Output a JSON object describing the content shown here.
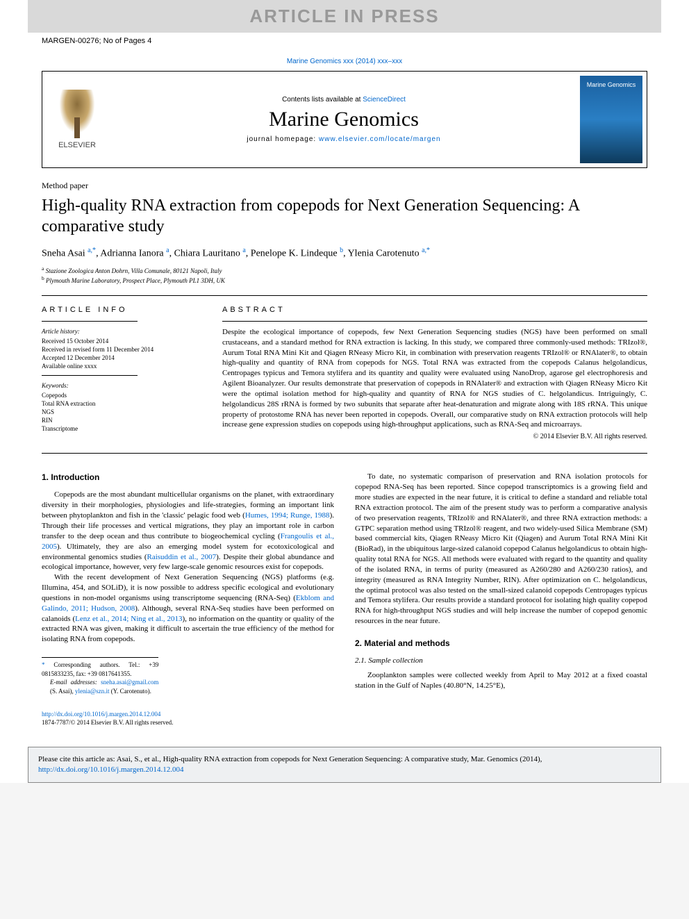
{
  "watermark": "ARTICLE IN PRESS",
  "ref_code": "MARGEN-00276; No of Pages 4",
  "journal_citation": "Marine Genomics xxx (2014) xxx–xxx",
  "header": {
    "contents_prefix": "Contents lists available at ",
    "contents_link": "ScienceDirect",
    "journal_name": "Marine Genomics",
    "homepage_prefix": "journal homepage: ",
    "homepage_url": "www.elsevier.com/locate/margen",
    "publisher": "ELSEVIER",
    "cover_label": "Marine Genomics"
  },
  "article": {
    "type": "Method paper",
    "title": "High-quality RNA extraction from copepods for Next Generation Sequencing: A comparative study",
    "authors_html": "Sneha Asai <sup>a,*</sup>, Adrianna Ianora <sup>a</sup>, Chiara Lauritano <sup>a</sup>, Penelope K. Lindeque <sup>b</sup>, Ylenia Carotenuto <sup>a,*</sup>",
    "affiliations": {
      "a": "Stazione Zoologica Anton Dohrn, Villa Comunale, 80121 Napoli, Italy",
      "b": "Plymouth Marine Laboratory, Prospect Place, Plymouth PL1 3DH, UK"
    }
  },
  "info": {
    "heading": "ARTICLE INFO",
    "history_label": "Article history:",
    "received": "Received 15 October 2014",
    "revised": "Received in revised form 11 December 2014",
    "accepted": "Accepted 12 December 2014",
    "online": "Available online xxxx",
    "keywords_label": "Keywords:",
    "keywords": [
      "Copepods",
      "Total RNA extraction",
      "NGS",
      "RIN",
      "Transcriptome"
    ]
  },
  "abstract": {
    "heading": "ABSTRACT",
    "text": "Despite the ecological importance of copepods, few Next Generation Sequencing studies (NGS) have been performed on small crustaceans, and a standard method for RNA extraction is lacking. In this study, we compared three commonly-used methods: TRIzol®, Aurum Total RNA Mini Kit and Qiagen RNeasy Micro Kit, in combination with preservation reagents TRIzol® or RNAlater®, to obtain high-quality and quantity of RNA from copepods for NGS. Total RNA was extracted from the copepods Calanus helgolandicus, Centropages typicus and Temora stylifera and its quantity and quality were evaluated using NanoDrop, agarose gel electrophoresis and Agilent Bioanalyzer. Our results demonstrate that preservation of copepods in RNAlater® and extraction with Qiagen RNeasy Micro Kit were the optimal isolation method for high-quality and quantity of RNA for NGS studies of C. helgolandicus. Intriguingly, C. helgolandicus 28S rRNA is formed by two subunits that separate after heat-denaturation and migrate along with 18S rRNA. This unique property of protostome RNA has never been reported in copepods. Overall, our comparative study on RNA extraction protocols will help increase gene expression studies on copepods using high-throughput applications, such as RNA-Seq and microarrays.",
    "copyright": "© 2014 Elsevier B.V. All rights reserved."
  },
  "body": {
    "s1_title": "1. Introduction",
    "s1_p1_a": "Copepods are the most abundant multicellular organisms on the planet, with extraordinary diversity in their morphologies, physiologies and life-strategies, forming an important link between phytoplankton and fish in the 'classic' pelagic food web (",
    "s1_p1_link1": "Humes, 1994; Runge, 1988",
    "s1_p1_b": "). Through their life processes and vertical migrations, they play an important role in carbon transfer to the deep ocean and thus contribute to biogeochemical cycling (",
    "s1_p1_link2": "Frangoulis et al., 2005",
    "s1_p1_c": "). Ultimately, they are also an emerging model system for ecotoxicological and environmental genomics studies (",
    "s1_p1_link3": "Raisuddin et al., 2007",
    "s1_p1_d": "). Despite their global abundance and ecological importance, however, very few large-scale genomic resources exist for copepods.",
    "s1_p2_a": "With the recent development of Next Generation Sequencing (NGS) platforms (e.g. Illumina, 454, and SOLiD), it is now possible to address specific ecological and evolutionary questions in non-model organisms using transcriptome sequencing (RNA-Seq) (",
    "s1_p2_link1": "Ekblom and Galindo, 2011; Hudson, 2008",
    "s1_p2_b": "). Although, several RNA-Seq studies have been performed on calanoids (",
    "s1_p2_link2": "Lenz et al., 2014; Ning et al., 2013",
    "s1_p2_c": "), no information on the quantity or quality of the extracted RNA was given, making it difficult to ascertain the true efficiency of the method for isolating RNA from copepods.",
    "s1_p3": "To date, no systematic comparison of preservation and RNA isolation protocols for copepod RNA-Seq has been reported. Since copepod transcriptomics is a growing field and more studies are expected in the near future, it is critical to define a standard and reliable total RNA extraction protocol. The aim of the present study was to perform a comparative analysis of two preservation reagents, TRIzol® and RNAlater®, and three RNA extraction methods: a GTPC separation method using TRIzol® reagent, and two widely-used Silica Membrane (SM) based commercial kits, Qiagen RNeasy Micro Kit (Qiagen) and Aurum Total RNA Mini Kit (BioRad), in the ubiquitous large-sized calanoid copepod Calanus helgolandicus to obtain high-quality total RNA for NGS. All methods were evaluated with regard to the quantity and quality of the isolated RNA, in terms of purity (measured as A260/280 and A260/230 ratios), and integrity (measured as RNA Integrity Number, RIN). After optimization on C. helgolandicus, the optimal protocol was also tested on the small-sized calanoid copepods Centropages typicus and Temora stylifera. Our results provide a standard protocol for isolating high quality copepod RNA for high-throughput NGS studies and will help increase the number of copepod genomic resources in the near future.",
    "s2_title": "2. Material and methods",
    "s2_1_title": "2.1. Sample collection",
    "s2_1_p1": "Zooplankton samples were collected weekly from April to May 2012 at a fixed coastal station in the Gulf of Naples (40.80°N, 14.25°E),"
  },
  "footnote": {
    "corr": "Corresponding authors. Tel.: +39 0815833235, fax: +39 0817641355.",
    "email_label": "E-mail addresses:",
    "email1": "sneha.asai@gmail.com",
    "email1_name": " (S. Asai), ",
    "email2": "ylenia@szn.it",
    "email2_name": " (Y. Carotenuto)."
  },
  "doi": {
    "url": "http://dx.doi.org/10.1016/j.margen.2014.12.004",
    "issn_line": "1874-7787/© 2014 Elsevier B.V. All rights reserved."
  },
  "cite": {
    "prefix": "Please cite this article as: Asai, S., et al., High-quality RNA extraction from copepods for Next Generation Sequencing: A comparative study, Mar. Genomics (2014), ",
    "url": "http://dx.doi.org/10.1016/j.margen.2014.12.004"
  },
  "colors": {
    "link": "#0066cc",
    "watermark_bg": "#d9d9d9",
    "watermark_fg": "#999999",
    "citebox_bg": "#eef0f2"
  }
}
